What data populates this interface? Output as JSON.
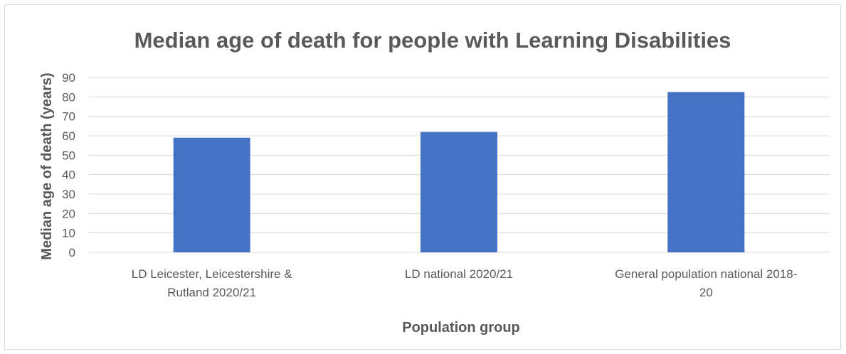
{
  "chart_data": {
    "type": "bar",
    "title": "Median age of death for people with Learning Disabilities",
    "xlabel": "Population group",
    "ylabel": "Median age of death (years)",
    "categories": [
      [
        "LD Leicester, Leicestershire &",
        "Rutland 2020/21"
      ],
      [
        "LD national 2020/21"
      ],
      [
        "General population national 2018-",
        "20"
      ]
    ],
    "values": [
      59,
      62,
      82.5
    ],
    "ylim": [
      0,
      90
    ],
    "yticks": [
      "0",
      "10",
      "20",
      "30",
      "40",
      "50",
      "60",
      "70",
      "80",
      "90"
    ],
    "grid": true,
    "bar_color": "#4472c4"
  }
}
